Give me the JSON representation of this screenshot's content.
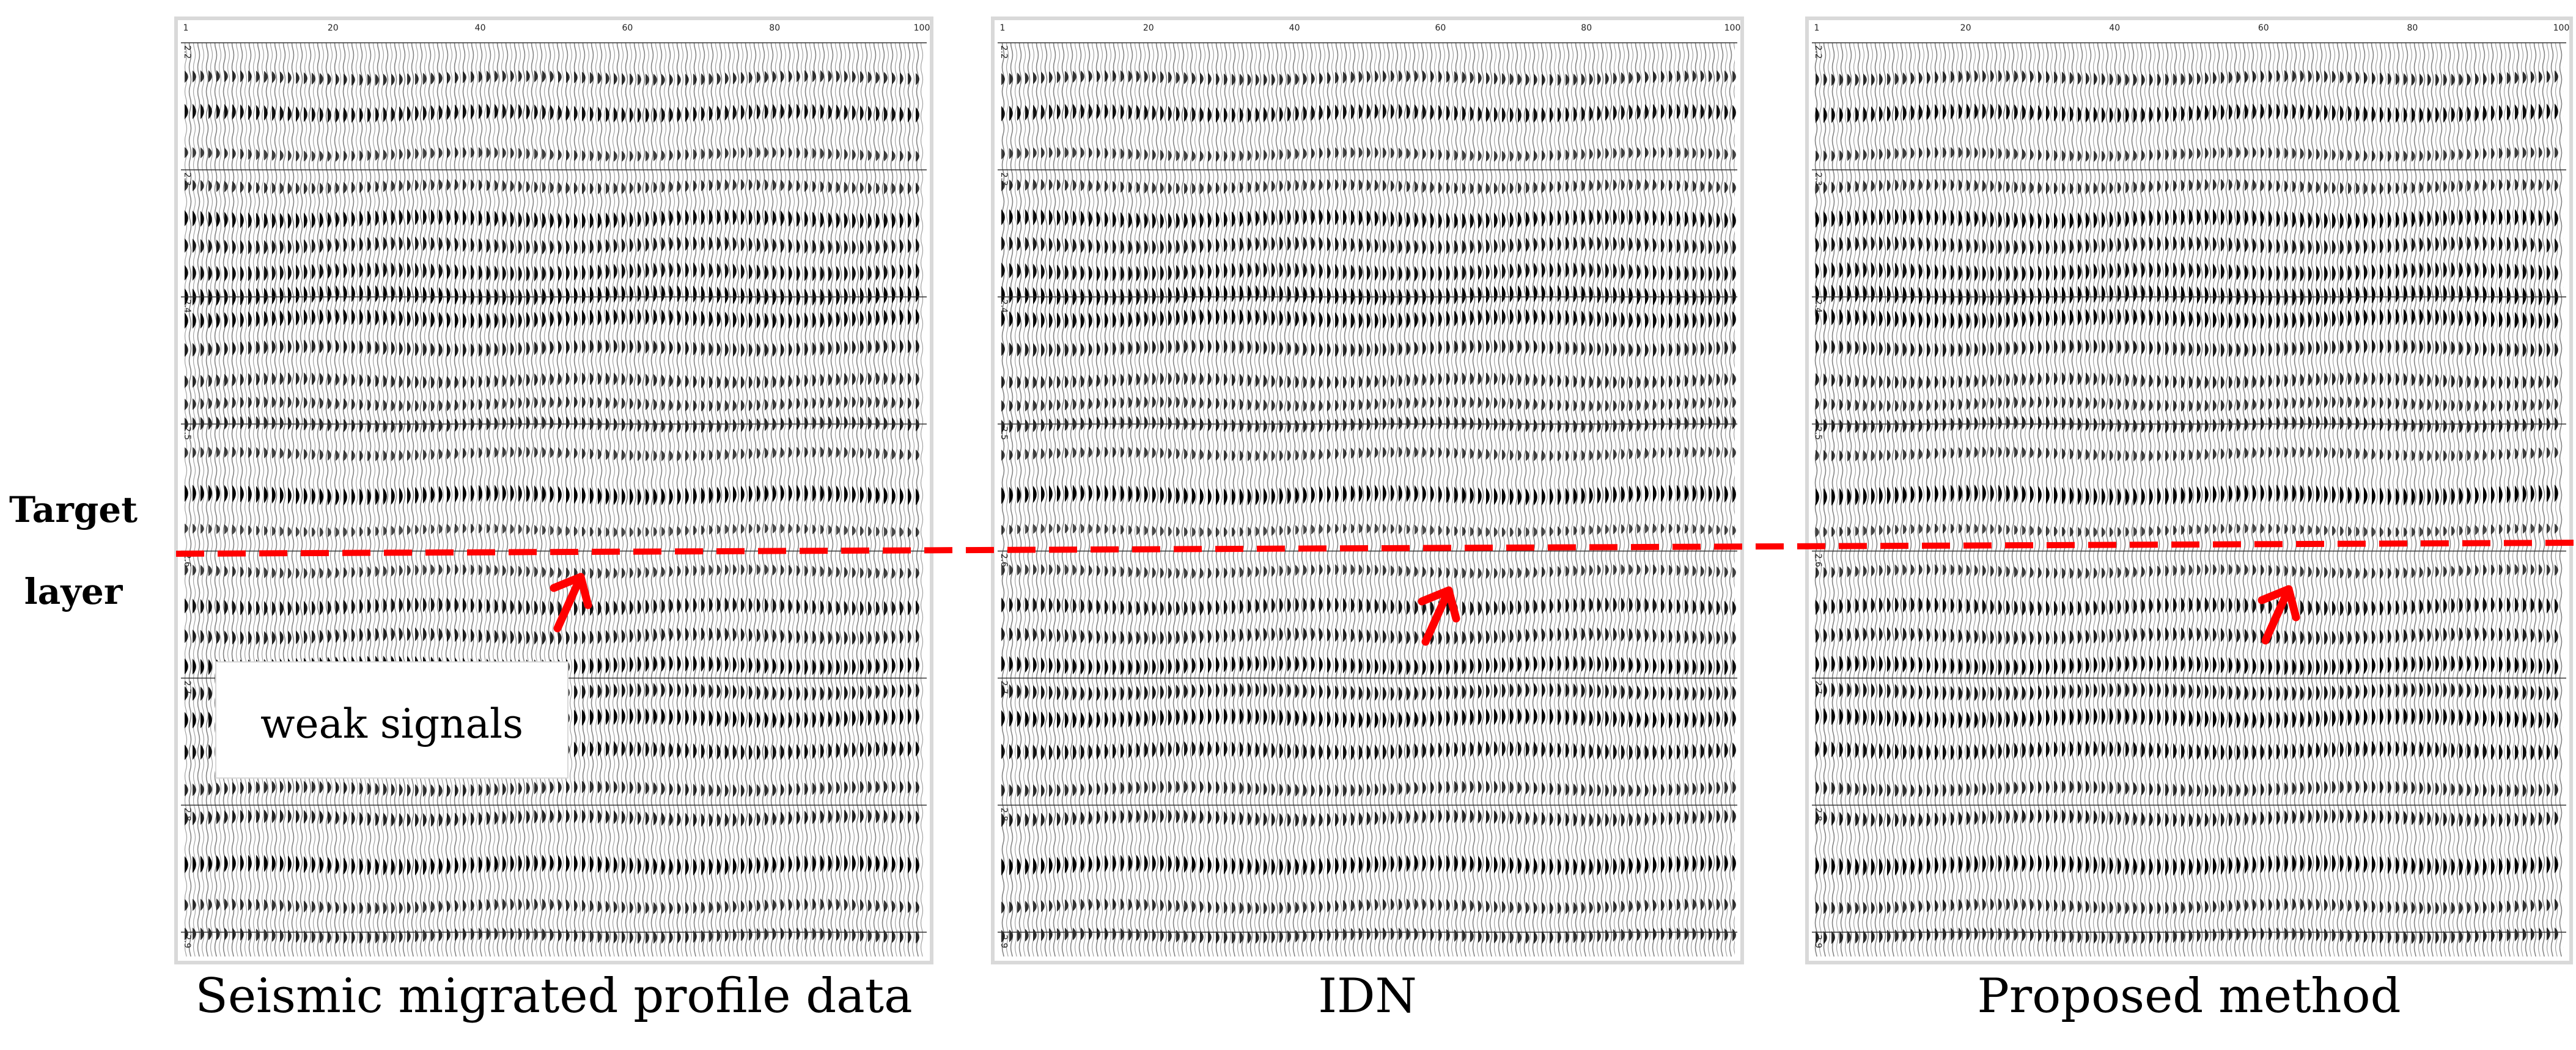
{
  "side_labels": {
    "line1": "Target",
    "line2": "layer"
  },
  "panels": [
    {
      "caption": "Seismic migrated profile data"
    },
    {
      "caption": "IDN"
    },
    {
      "caption": "Proposed method"
    }
  ],
  "annotation": {
    "text": "weak signals"
  },
  "trace_axis_ticks": [
    "1",
    "20",
    "40",
    "60",
    "80",
    "100"
  ],
  "time_axis_ticks": [
    "2.2",
    "2.3",
    "2.4",
    "2.5",
    "2.6",
    "2.7",
    "2.8",
    "2.9"
  ],
  "colors": {
    "marker": "#ff0000",
    "wiggle": "#000000",
    "frame": "#d9d9d9"
  }
}
